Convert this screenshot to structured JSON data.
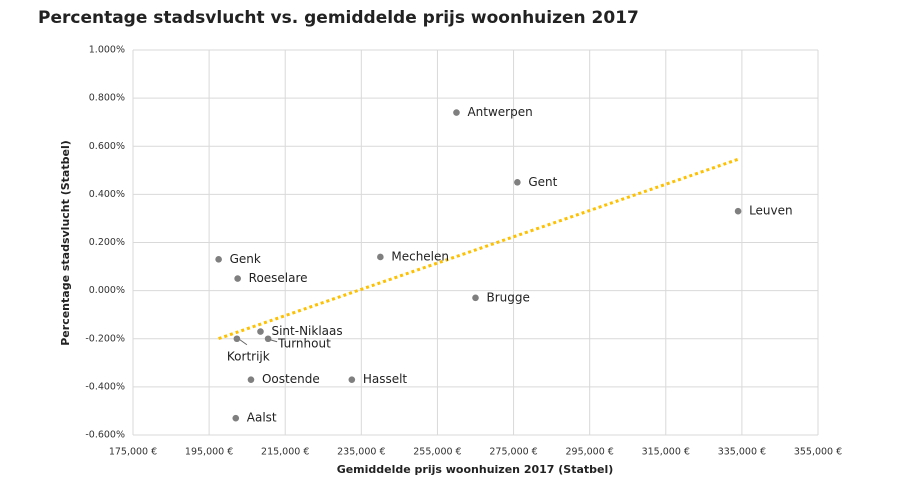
{
  "chart_data": {
    "type": "scatter",
    "title": "Percentage stadsvlucht vs. gemiddelde prijs woonhuizen 2017",
    "x_label": "Gemiddelde prijs woonhuizen 2017 (Statbel)",
    "y_label": "Percentage stadsvlucht (Statbel)",
    "point_labels": [
      "Antwerpen",
      "Gent",
      "Leuven",
      "Genk",
      "Roeselare",
      "Mechelen",
      "Brugge",
      "Sint-Niklaas",
      "Kortrijk",
      "Turnhout",
      "Oostende",
      "Hasselt",
      "Aalst"
    ],
    "x": [
      260000,
      276000,
      334000,
      197500,
      202500,
      240000,
      265000,
      208500,
      202300,
      210500,
      206000,
      232500,
      202000
    ],
    "values": [
      0.74,
      0.45,
      0.33,
      0.13,
      0.05,
      0.14,
      -0.03,
      -0.17,
      -0.2,
      -0.2,
      -0.37,
      -0.37,
      -0.53
    ],
    "color": "#7f7f7f",
    "trendline": true,
    "trend_color": "#ffc000",
    "grid": true,
    "xlim": [
      175000,
      355000
    ],
    "xticks": [
      {
        "value": 175000,
        "label": "175,000 €"
      },
      {
        "value": 195000,
        "label": "195,000 €"
      },
      {
        "value": 215000,
        "label": "215,000 €"
      },
      {
        "value": 235000,
        "label": "235,000 €"
      },
      {
        "value": 255000,
        "label": "255,000 €"
      },
      {
        "value": 275000,
        "label": "275,000 €"
      },
      {
        "value": 295000,
        "label": "295,000 €"
      },
      {
        "value": 315000,
        "label": "315,000 €"
      },
      {
        "value": 335000,
        "label": "335,000 €"
      },
      {
        "value": 355000,
        "label": "355,000 €"
      }
    ],
    "ylim": [
      -0.6,
      1
    ],
    "yticks": [
      {
        "value": -0.6,
        "label": "-0.600%"
      },
      {
        "value": -0.4,
        "label": "-0.400%"
      },
      {
        "value": -0.2,
        "label": "-0.200%"
      },
      {
        "value": 0,
        "label": "0.000%"
      },
      {
        "value": 0.2,
        "label": "0.200%"
      },
      {
        "value": 0.4,
        "label": "0.400%"
      },
      {
        "value": 0.6,
        "label": "0.600%"
      },
      {
        "value": 0.8,
        "label": "0.800%"
      },
      {
        "value": 1,
        "label": "1.000%"
      }
    ]
  }
}
